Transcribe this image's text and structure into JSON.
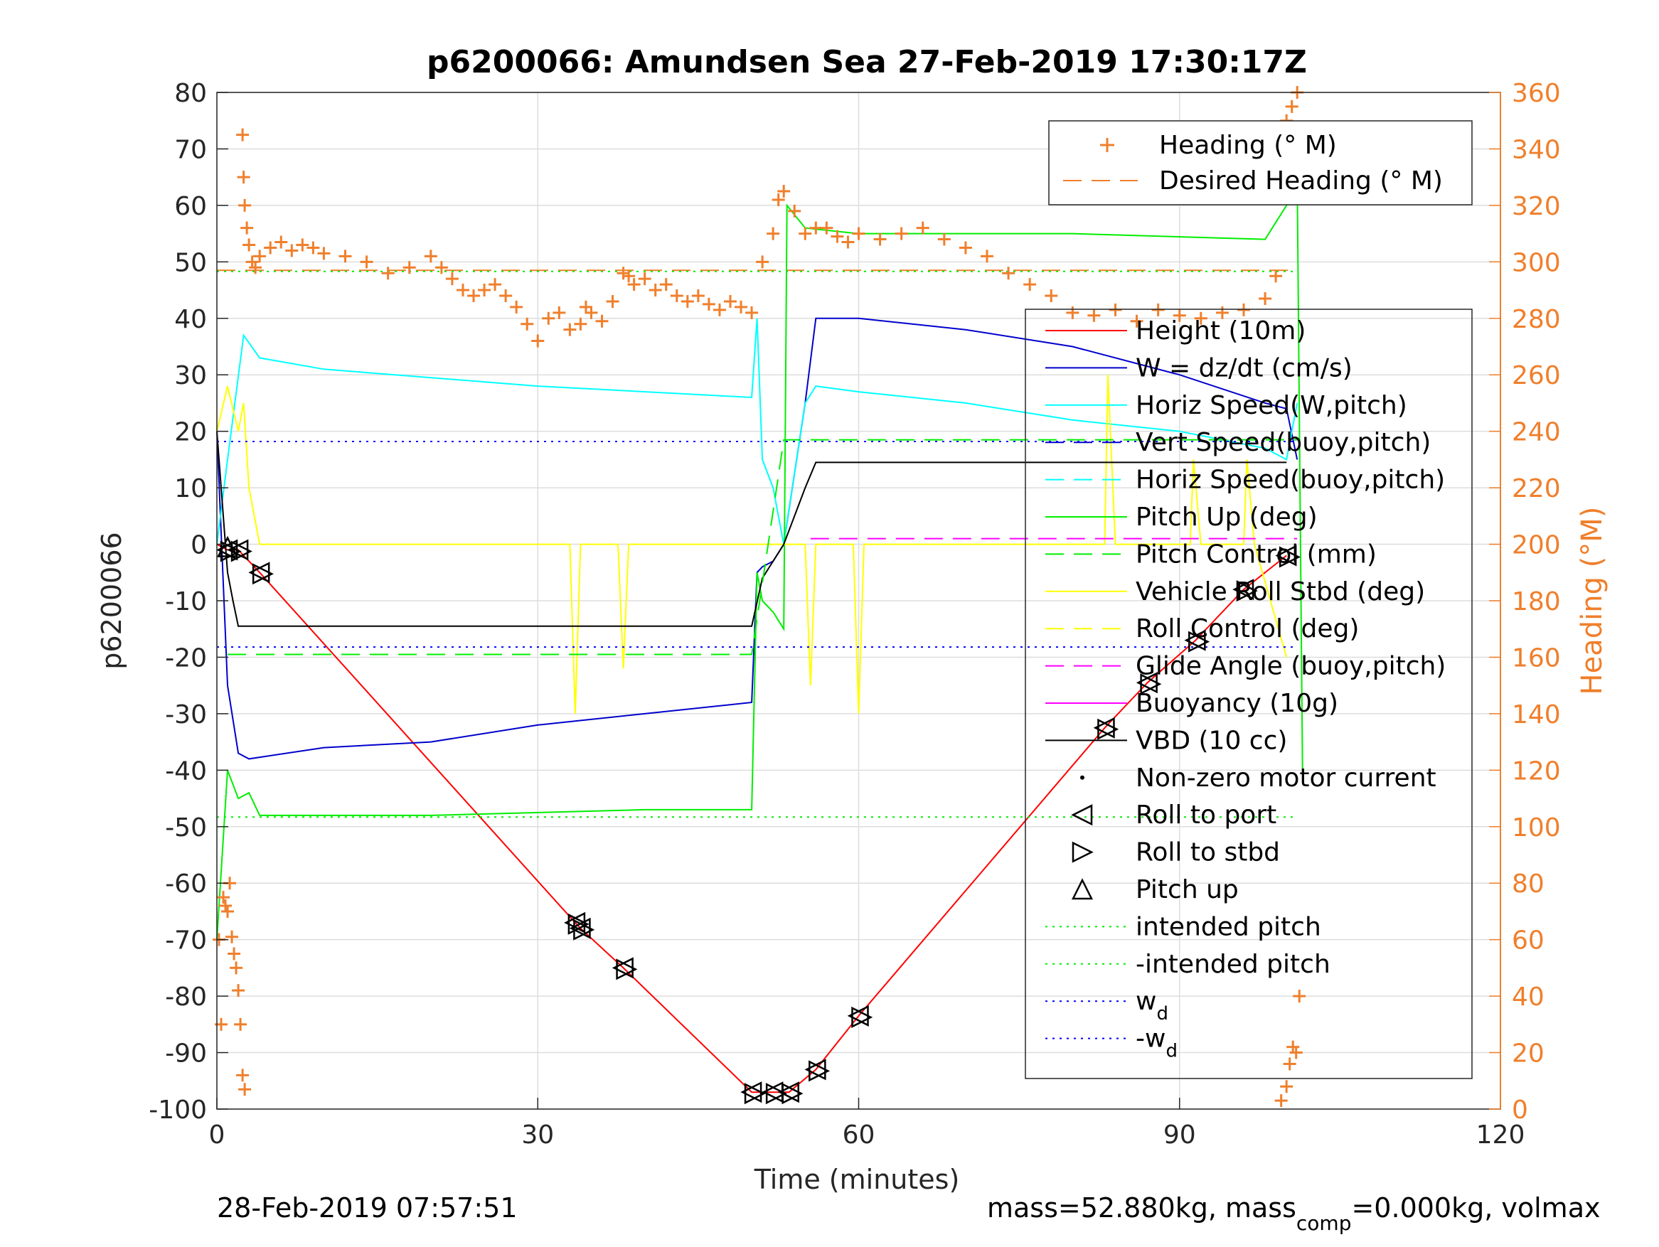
{
  "chart_data": {
    "type": "line",
    "title": "p6200066: Amundsen Sea 27-Feb-2019 17:30:17Z",
    "xlabel": "Time (minutes)",
    "ylabel_left": "p6200066",
    "ylabel_right": "Heading (°M)",
    "xlim": [
      0,
      120
    ],
    "ylim_left": [
      -100,
      80
    ],
    "ylim_right": [
      0,
      360
    ],
    "xticks": [
      0,
      30,
      60,
      90,
      120
    ],
    "yticks_left": [
      80,
      70,
      60,
      50,
      40,
      30,
      20,
      10,
      0,
      -10,
      -20,
      -30,
      -40,
      -50,
      -60,
      -70,
      -80,
      -90,
      -100
    ],
    "yticks_right": [
      360,
      340,
      320,
      300,
      280,
      260,
      240,
      220,
      200,
      180,
      160,
      140,
      120,
      100,
      80,
      60,
      40,
      20,
      0
    ],
    "grid": true,
    "footer_left": "28-Feb-2019 07:57:51",
    "footer_right_parts": [
      "mass=52.880kg, mass",
      "comp",
      "=0.000kg, volmax"
    ],
    "legend_heading": [
      {
        "label": "Heading (° M)",
        "style": "plus",
        "color": "#f07f2b"
      },
      {
        "label": "Desired Heading (° M)",
        "style": "dashed",
        "color": "#f07f2b"
      }
    ],
    "legend_main": [
      {
        "label": "Height (10m)",
        "style": "solid",
        "color": "#ff0000"
      },
      {
        "label": "W = dz/dt (cm/s)",
        "style": "solid",
        "color": "#0000cc"
      },
      {
        "label": "Horiz Speed(W,pitch)",
        "style": "solid",
        "color": "#00ffff"
      },
      {
        "label": "Vert Speed(buoy,pitch)",
        "style": "dashed",
        "color": "#0000cc"
      },
      {
        "label": "Horiz Speed(buoy,pitch)",
        "style": "dashed",
        "color": "#00ffff"
      },
      {
        "label": "Pitch Up (deg)",
        "style": "solid",
        "color": "#00ee00"
      },
      {
        "label": "Pitch Control (mm)",
        "style": "dashed",
        "color": "#00ee00"
      },
      {
        "label": "Vehicle Roll Stbd (deg)",
        "style": "solid",
        "color": "#ffff00"
      },
      {
        "label": "Roll Control (deg)",
        "style": "dashed",
        "color": "#ffff00"
      },
      {
        "label": "Glide Angle (buoy,pitch)",
        "style": "dashed",
        "color": "#ff00ff"
      },
      {
        "label": "Buoyancy (10g)",
        "style": "solid",
        "color": "#ff00ff"
      },
      {
        "label": "VBD (10 cc)",
        "style": "solid",
        "color": "#000000"
      },
      {
        "label": "Non-zero motor current",
        "style": "dot",
        "color": "#000000"
      },
      {
        "label": "Roll to port",
        "style": "tri-left",
        "color": "#000000"
      },
      {
        "label": "Roll to stbd",
        "style": "tri-right",
        "color": "#000000"
      },
      {
        "label": "Pitch up",
        "style": "tri-up",
        "color": "#000000"
      },
      {
        "label": "intended pitch",
        "style": "dotted",
        "color": "#00ee00"
      },
      {
        "label": "-intended pitch",
        "style": "dotted",
        "color": "#00ee00"
      },
      {
        "label": "w",
        "sub": "d",
        "style": "dotted",
        "color": "#0000ff"
      },
      {
        "label": "-w",
        "sub": "d",
        "style": "dotted",
        "color": "#0000ff"
      }
    ],
    "series": [
      {
        "name": "Height (10m)",
        "color": "#ff0000",
        "style": "solid",
        "x": [
          0,
          1,
          2,
          4,
          33.5,
          34,
          38,
          50,
          52,
          53.5,
          56,
          60,
          83,
          87,
          91.5,
          96,
          100
        ],
        "y": [
          0,
          -1,
          -1,
          -5,
          -67,
          -68,
          -75,
          -97,
          -97,
          -97,
          -93,
          -83.5,
          -32.5,
          -24.5,
          -17,
          -8,
          -2
        ]
      },
      {
        "name": "W = dz/dt (cm/s)",
        "color": "#0000cc",
        "style": "solid",
        "x": [
          0,
          1,
          2,
          3,
          10,
          20,
          30,
          40,
          50,
          50.5,
          51,
          52,
          53,
          55,
          56,
          60,
          70,
          80,
          90,
          98,
          100,
          101
        ],
        "y": [
          20,
          -25,
          -37,
          -38,
          -36,
          -35,
          -32,
          -30,
          -28,
          -5,
          -4,
          -3,
          0,
          25,
          40,
          40,
          38,
          35,
          30,
          25,
          24,
          15
        ]
      },
      {
        "name": "Horiz Speed(W,pitch)",
        "color": "#00ffff",
        "style": "solid",
        "x": [
          0,
          1,
          2.5,
          4,
          10,
          30,
          50,
          50.5,
          51,
          52,
          53,
          55,
          56,
          60,
          70,
          80,
          90,
          98,
          100,
          101
        ],
        "y": [
          0,
          15,
          37,
          33,
          31,
          28,
          26,
          40,
          15,
          10,
          0,
          25,
          28,
          27,
          25,
          22,
          20,
          17,
          15,
          25
        ]
      },
      {
        "name": "Pitch Up (deg)",
        "color": "#00ee00",
        "style": "solid",
        "x": [
          0,
          1,
          2,
          3,
          4,
          20,
          40,
          50,
          50.5,
          51,
          52,
          53,
          53.3,
          55,
          60,
          80,
          98,
          100,
          101,
          101.5
        ],
        "y": [
          -70,
          -40,
          -45,
          -44,
          -48,
          -48,
          -47,
          -47,
          -5,
          -10,
          -12,
          -15,
          60,
          56,
          55,
          55,
          54,
          60,
          65,
          -40
        ]
      },
      {
        "name": "Vehicle Roll Stbd (deg)",
        "color": "#ffff00",
        "style": "solid",
        "x": [
          0,
          1,
          2,
          2.5,
          3,
          4,
          20,
          33,
          33.5,
          34,
          37.5,
          38,
          38.5,
          50,
          53,
          55,
          55.5,
          56,
          59.5,
          60,
          60.5,
          80,
          83,
          83.3,
          84,
          91,
          91.3,
          92,
          96,
          96.3,
          97,
          100
        ],
        "y": [
          20,
          28,
          20,
          25,
          10,
          0,
          0,
          0,
          -30,
          0,
          0,
          -22,
          0,
          0,
          0,
          0,
          -25,
          0,
          0,
          -30,
          0,
          0,
          0,
          30,
          0,
          0,
          15,
          0,
          0,
          15,
          0,
          -20
        ]
      },
      {
        "name": "VBD (10 cc)",
        "color": "#000000",
        "style": "solid",
        "x": [
          0,
          1,
          1.5,
          2,
          30,
          50,
          51,
          53,
          55,
          56,
          60,
          100
        ],
        "y": [
          20,
          -5,
          -10,
          -14.5,
          -14.5,
          -14.5,
          -6,
          0,
          10,
          14.5,
          14.5,
          14.5
        ]
      },
      {
        "name": "Pitch Control (mm)",
        "color": "#00ee00",
        "style": "dashed",
        "x": [
          1,
          50,
          53,
          101
        ],
        "y": [
          -19.5,
          -19.5,
          18.5,
          18.5
        ]
      },
      {
        "name": "Glide Angle (buoy,pitch)",
        "color": "#ff00ff",
        "style": "dashed",
        "x": [
          55.5,
          101
        ],
        "y": [
          1,
          1
        ]
      },
      {
        "name": "intended pitch",
        "color": "#00ee00",
        "style": "dotted",
        "x": [
          0,
          101
        ],
        "y": [
          48.3,
          48.3
        ]
      },
      {
        "name": "-intended pitch",
        "color": "#00ee00",
        "style": "dotted",
        "x": [
          0,
          101
        ],
        "y": [
          -48.3,
          -48.3
        ]
      },
      {
        "name": "w_d",
        "color": "#0000ff",
        "style": "dotted",
        "x": [
          0,
          101
        ],
        "y": [
          18.2,
          18.2
        ]
      },
      {
        "name": "-w_d",
        "color": "#0000ff",
        "style": "dotted",
        "x": [
          0,
          101
        ],
        "y": [
          -18.2,
          -18.2
        ]
      }
    ],
    "desired_heading": {
      "name": "Desired Heading (° M)",
      "color": "#f07f2b",
      "y_right": 297,
      "x": [
        0,
        101
      ]
    },
    "heading_points": {
      "name": "Heading (° M)",
      "color": "#f07f2b",
      "x": [
        2.4,
        2.5,
        2.6,
        2.8,
        3.0,
        3.3,
        3.6,
        4,
        5,
        6,
        7,
        8,
        9,
        10,
        12,
        14,
        16,
        18,
        20,
        21,
        22,
        23,
        24,
        25,
        26,
        27,
        28,
        29,
        30,
        31,
        32,
        33,
        34,
        34.5,
        35,
        36,
        37,
        38,
        38.5,
        39,
        40,
        41,
        42,
        43,
        44,
        45,
        46,
        47,
        48,
        49,
        50,
        51,
        52,
        52.5,
        53,
        54,
        55,
        56,
        57,
        58,
        59,
        60,
        62,
        64,
        66,
        68,
        70,
        72,
        74,
        76,
        78,
        80,
        82,
        84,
        86,
        88,
        90,
        92,
        94,
        96,
        98,
        99,
        99.5,
        100,
        100.5,
        101,
        0.2,
        0.4,
        0.6,
        0.8,
        1.0,
        1.2,
        1.4,
        1.6,
        1.8,
        2.0,
        2.2,
        2.4,
        2.6,
        99.5,
        100,
        100.3,
        100.6,
        100.9,
        101.2
      ],
      "y": [
        345,
        330,
        320,
        312,
        306,
        300,
        298,
        302,
        305,
        307,
        304,
        306,
        305,
        303,
        302,
        300,
        296,
        298,
        302,
        298,
        294,
        290,
        288,
        290,
        292,
        288,
        284,
        278,
        272,
        280,
        282,
        276,
        278,
        284,
        282,
        279,
        286,
        296,
        295,
        292,
        294,
        290,
        292,
        288,
        286,
        288,
        285,
        283,
        286,
        284,
        282,
        300,
        310,
        322,
        325,
        318,
        310,
        312,
        312,
        309,
        307,
        310,
        308,
        310,
        312,
        308,
        305,
        302,
        296,
        292,
        288,
        282,
        281,
        283,
        279,
        283,
        281,
        280,
        282,
        283,
        287,
        295,
        340,
        350,
        355,
        360,
        60,
        30,
        75,
        72,
        70,
        80,
        61,
        55,
        50,
        42,
        30,
        12,
        7,
        3,
        8,
        16,
        22,
        20,
        40
      ]
    }
  }
}
